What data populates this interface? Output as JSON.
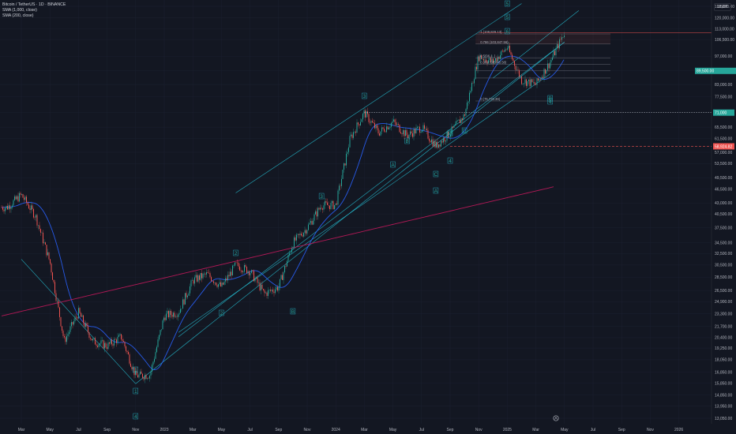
{
  "legend": {
    "symbol": "Bitcoin / TetherUS · 1D · BINANCE",
    "sma_fast": "SMA (1,000, close)",
    "sma_slow": "SMA (200, close)"
  },
  "currency": "USDT",
  "colors": {
    "bg": "#131722",
    "up": "#26a69a",
    "down": "#ef5350",
    "sma200": "#2962ff",
    "sma1000": "#c2185b",
    "channel": "#26c6da",
    "fib": "#787b86"
  },
  "chart_data": {
    "type": "candlestick",
    "y_scale": "log",
    "y_ticks": [
      "128,000.00",
      "120,000.00",
      "113,000.00",
      "106,500.00",
      "97,000.00",
      "89,500.00",
      "83,000.00",
      "77,500.00",
      "71,000.00",
      "65,500.00",
      "61,500.00",
      "57,000.00",
      "53,500.00",
      "49,500.00",
      "46,500.00",
      "43,000.00",
      "40,500.00",
      "37,500.00",
      "34,500.00",
      "32,500.00",
      "30,500.00",
      "28,500.00",
      "26,500.00",
      "24,900.00",
      "23,300.00",
      "21,700.00",
      "20,400.00",
      "19,250.00",
      "18,050.00",
      "16,850.00",
      "15,850.00",
      "14,850.00",
      "13,950.00",
      "13,050.00"
    ],
    "x_ticks": [
      "Mar",
      "May",
      "Jul",
      "Sep",
      "Nov",
      "2023",
      "Mar",
      "May",
      "Jul",
      "Sep",
      "Nov",
      "2024",
      "Mar",
      "May",
      "Jul",
      "Sep",
      "Nov",
      "2025",
      "Mar",
      "May",
      "Jul",
      "Sep",
      "Nov",
      "2026"
    ],
    "price_series": [
      {
        "t": "2022-02",
        "p": 42000
      },
      {
        "t": "2022-03",
        "p": 45000
      },
      {
        "t": "2022-04",
        "p": 40000
      },
      {
        "t": "2022-05",
        "p": 31000
      },
      {
        "t": "2022-06",
        "p": 20000
      },
      {
        "t": "2022-07",
        "p": 23500
      },
      {
        "t": "2022-08",
        "p": 20000
      },
      {
        "t": "2022-09",
        "p": 19500
      },
      {
        "t": "2022-10",
        "p": 20500
      },
      {
        "t": "2022-11",
        "p": 16500
      },
      {
        "t": "2022-12",
        "p": 16600
      },
      {
        "t": "2023-01",
        "p": 23000
      },
      {
        "t": "2023-02",
        "p": 23500
      },
      {
        "t": "2023-03",
        "p": 28000
      },
      {
        "t": "2023-04",
        "p": 29000
      },
      {
        "t": "2023-05",
        "p": 27000
      },
      {
        "t": "2023-06",
        "p": 30500
      },
      {
        "t": "2023-07",
        "p": 29500
      },
      {
        "t": "2023-08",
        "p": 26000
      },
      {
        "t": "2023-09",
        "p": 27000
      },
      {
        "t": "2023-10",
        "p": 34500
      },
      {
        "t": "2023-11",
        "p": 37500
      },
      {
        "t": "2023-12",
        "p": 42500
      },
      {
        "t": "2024-01",
        "p": 42500
      },
      {
        "t": "2024-02",
        "p": 61500
      },
      {
        "t": "2024-03",
        "p": 71000
      },
      {
        "t": "2024-04",
        "p": 63500
      },
      {
        "t": "2024-05",
        "p": 67500
      },
      {
        "t": "2024-06",
        "p": 62500
      },
      {
        "t": "2024-07",
        "p": 65500
      },
      {
        "t": "2024-08",
        "p": 59000
      },
      {
        "t": "2024-09",
        "p": 63500
      },
      {
        "t": "2024-10",
        "p": 70000
      },
      {
        "t": "2024-11",
        "p": 97000
      },
      {
        "t": "2024-12",
        "p": 94000
      },
      {
        "t": "2025-01",
        "p": 102000
      },
      {
        "t": "2025-02",
        "p": 85000
      },
      {
        "t": "2025-03",
        "p": 83000
      },
      {
        "t": "2025-04",
        "p": 94000
      },
      {
        "t": "2025-05",
        "p": 111000
      }
    ],
    "price_labels": [
      {
        "text": "89,500.00",
        "color": "#26a69a"
      },
      {
        "text": "71,000",
        "color": "#26a69a"
      },
      {
        "text": "58,924.82",
        "color": "#ef5350"
      }
    ],
    "fib_labels": [
      "1 (109,829.13)",
      "0.786 (103,847.56)",
      "0.5(96,1..)",
      "0.382 (92,845.58)",
      "0 (75,733.39)"
    ],
    "wave_labels": [
      "5",
      "5",
      "6",
      "3",
      "1",
      "2",
      "4",
      "2",
      "3",
      "A",
      "B",
      "A",
      "B",
      "C",
      "D",
      "E",
      "4",
      "1",
      "4",
      "B"
    ]
  }
}
